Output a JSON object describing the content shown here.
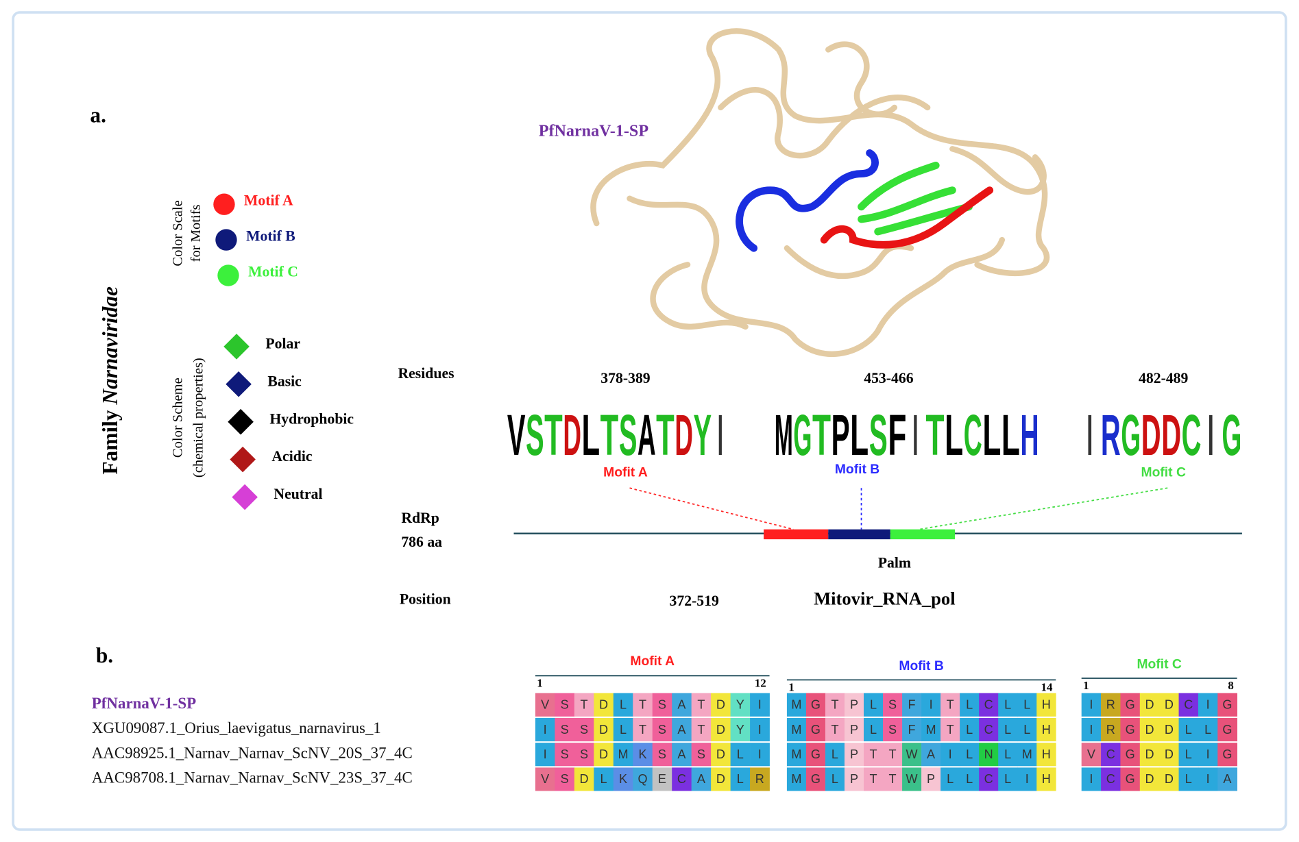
{
  "panel_a": {
    "label": "a.",
    "protein_name": "PfNarnaV-1-SP",
    "family_label": "Family",
    "family_name": "Narnaviridae",
    "motif_scale": {
      "title": [
        "Color Scale",
        "for Motifs"
      ],
      "items": [
        {
          "label": "Motif A",
          "color": "#ff1f1f"
        },
        {
          "label": "Motif B",
          "color": "#0f1a7a"
        },
        {
          "label": "Motif C",
          "color": "#3cf03c"
        }
      ]
    },
    "color_scheme": {
      "title": [
        "Color Scheme",
        "(chemical properties)"
      ],
      "items": [
        {
          "label": "Polar",
          "color": "#2cc52c"
        },
        {
          "label": "Basic",
          "color": "#0f1a7a"
        },
        {
          "label": "Hydrophobic",
          "color": "#000000"
        },
        {
          "label": "Acidic",
          "color": "#b01818"
        },
        {
          "label": "Neutral",
          "color": "#d63fd6"
        }
      ]
    },
    "residues_label": "Residues",
    "motifs": [
      {
        "range": "378-389",
        "name": "Mofit A",
        "color": "#ff1f1f",
        "letters": [
          "V",
          "S",
          "T",
          "D",
          "L",
          "T",
          "S",
          "A",
          "T",
          "D",
          "Y",
          "I"
        ]
      },
      {
        "range": "453-466",
        "name": "Mofit B",
        "color": "#2b2bff",
        "letters": [
          "M",
          "G",
          "T",
          "P",
          "L",
          "S",
          "F",
          "I",
          "T",
          "L",
          "C",
          "L",
          "L",
          "H"
        ]
      },
      {
        "range": "482-489",
        "name": "Mofit C",
        "color": "#44dd44",
        "letters": [
          "I",
          "R",
          "G",
          "D",
          "D",
          "C",
          "I",
          "G"
        ]
      }
    ],
    "rdrp_label": [
      "RdRp",
      "786 aa"
    ],
    "palm_label": "Palm",
    "position_label": "Position",
    "position_range": "372-519",
    "domain_name": "Mitovir_RNA_pol"
  },
  "panel_b": {
    "label": "b.",
    "sequence_names": [
      "PfNarnaV-1-SP",
      "XGU09087.1_Orius_laevigatus_narnavirus_1",
      "AAC98925.1_Narnav_Narnav_ScNV_20S_37_4C",
      "AAC98708.1_Narnav_Narnav_ScNV_23S_37_4C"
    ],
    "blocks": [
      {
        "title": "Mofit A",
        "start": "1",
        "end": "12",
        "rows": [
          [
            "V",
            "S",
            "T",
            "D",
            "L",
            "T",
            "S",
            "A",
            "T",
            "D",
            "Y",
            "I"
          ],
          [
            "I",
            "S",
            "S",
            "D",
            "L",
            "T",
            "S",
            "A",
            "T",
            "D",
            "Y",
            "I"
          ],
          [
            "I",
            "S",
            "S",
            "D",
            "M",
            "K",
            "S",
            "A",
            "S",
            "D",
            "L",
            "I"
          ],
          [
            "V",
            "S",
            "D",
            "L",
            "K",
            "Q",
            "E",
            "C",
            "A",
            "D",
            "L",
            "R"
          ]
        ]
      },
      {
        "title": "Mofit B",
        "start": "1",
        "end": "14",
        "rows": [
          [
            "M",
            "G",
            "T",
            "P",
            "L",
            "S",
            "F",
            "I",
            "T",
            "L",
            "C",
            "L",
            "L",
            "H"
          ],
          [
            "M",
            "G",
            "T",
            "P",
            "L",
            "S",
            "F",
            "M",
            "T",
            "L",
            "C",
            "L",
            "L",
            "H"
          ],
          [
            "M",
            "G",
            "L",
            "P",
            "T",
            "T",
            "W",
            "A",
            "I",
            "L",
            "N",
            "L",
            "M",
            "H"
          ],
          [
            "M",
            "G",
            "L",
            "P",
            "T",
            "T",
            "W",
            "P",
            "L",
            "L",
            "C",
            "L",
            "I",
            "H"
          ]
        ]
      },
      {
        "title": "Mofit C",
        "start": "1",
        "end": "8",
        "rows": [
          [
            "I",
            "R",
            "G",
            "D",
            "D",
            "C",
            "I",
            "G"
          ],
          [
            "I",
            "R",
            "G",
            "D",
            "D",
            "L",
            "L",
            "G"
          ],
          [
            "V",
            "C",
            "G",
            "D",
            "D",
            "L",
            "I",
            "G"
          ],
          [
            "I",
            "C",
            "G",
            "D",
            "D",
            "L",
            "I",
            "A"
          ]
        ]
      }
    ]
  }
}
